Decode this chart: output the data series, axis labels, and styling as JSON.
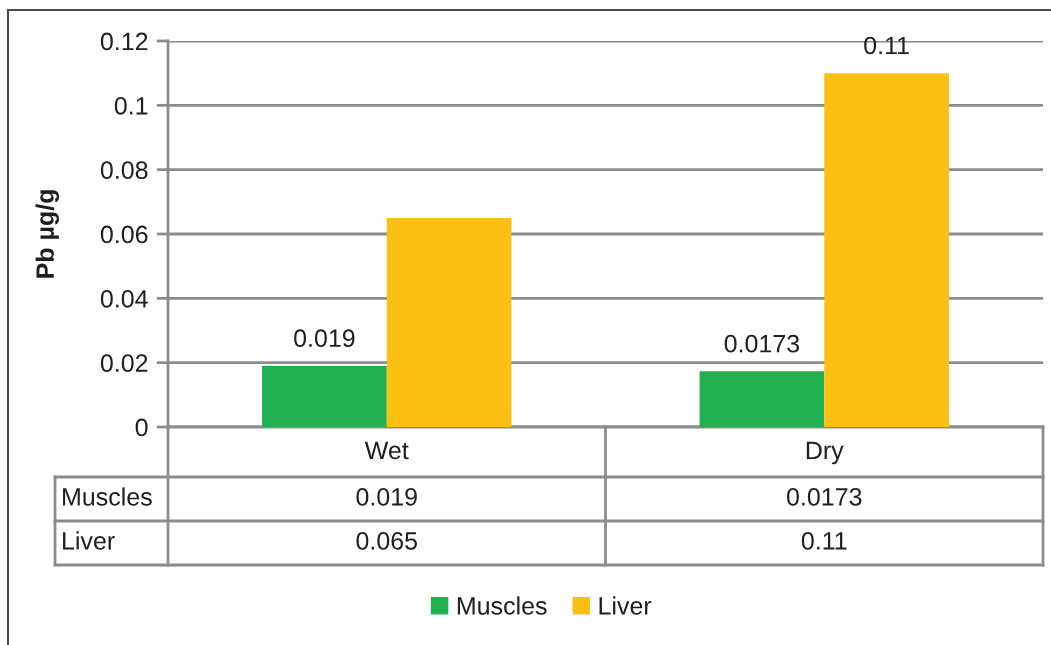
{
  "chart_data": {
    "type": "bar",
    "ylabel": "Pb µg/g",
    "categories": [
      "Wet",
      "Dry"
    ],
    "series": [
      {
        "name": "Muscles",
        "color": "#21b04f",
        "values": [
          0.019,
          0.0173
        ]
      },
      {
        "name": "Liver",
        "color": "#fbc012",
        "values": [
          0.065,
          0.11
        ]
      }
    ],
    "ylim": [
      0,
      0.12
    ],
    "yticks": [
      0,
      0.02,
      0.04,
      0.06,
      0.08,
      0.1,
      0.12
    ],
    "grid": "y",
    "legend": "bottom",
    "data_labels": true,
    "annotations": [
      {
        "text": "0.019",
        "x": "Wet",
        "y": 0.019
      },
      {
        "text": "0.0173",
        "x": "Dry",
        "y": 0.0173
      },
      {
        "text": "0.11",
        "x": "Dry",
        "y": 0.11
      }
    ]
  }
}
